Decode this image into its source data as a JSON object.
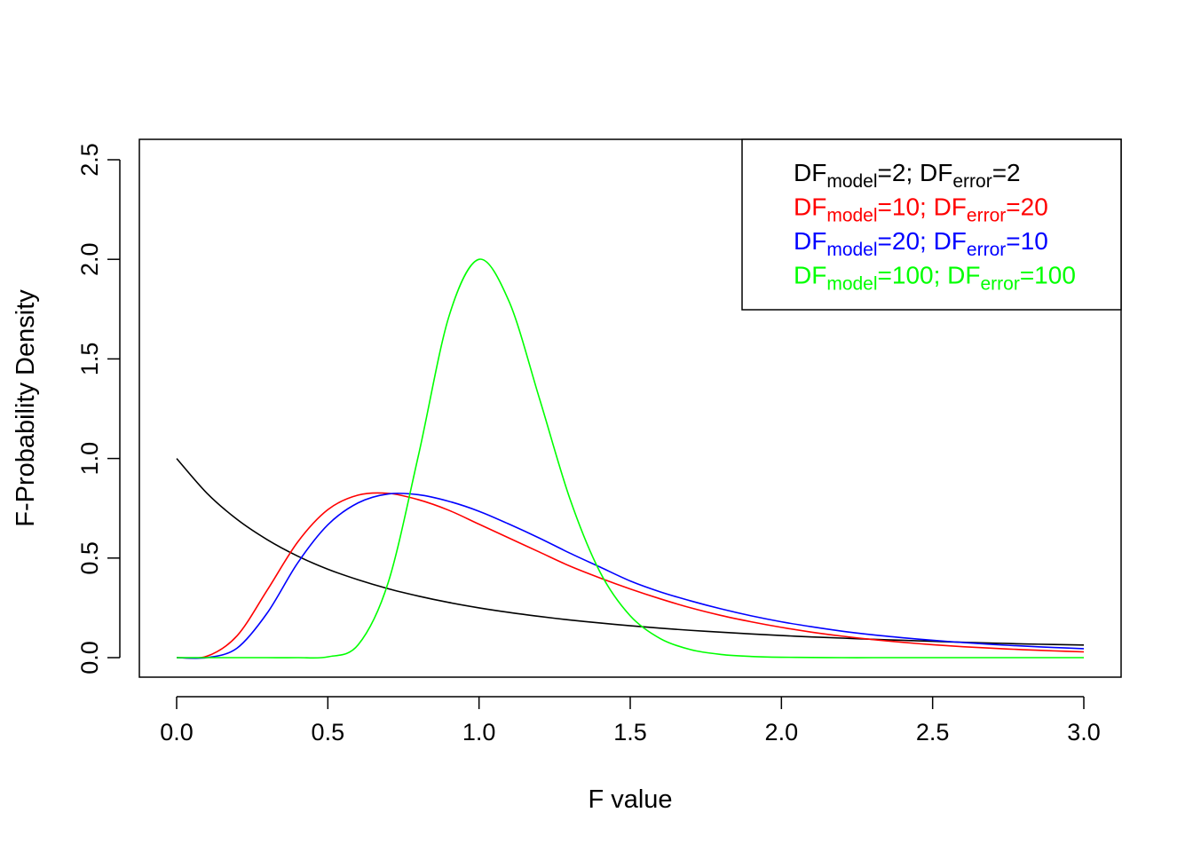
{
  "chart_data": {
    "type": "line",
    "title": "",
    "xlabel": "F value",
    "ylabel": "F-Probability Density",
    "xlim": [
      0,
      3
    ],
    "ylim": [
      0,
      2.5
    ],
    "x_ticks": [
      0.0,
      0.5,
      1.0,
      1.5,
      2.0,
      2.5,
      3.0
    ],
    "x_tick_labels": [
      "0.0",
      "0.5",
      "1.0",
      "1.5",
      "2.0",
      "2.5",
      "3.0"
    ],
    "y_ticks": [
      0.0,
      0.5,
      1.0,
      1.5,
      2.0,
      2.5
    ],
    "y_tick_labels": [
      "0.0",
      "0.5",
      "1.0",
      "1.5",
      "2.0",
      "2.5"
    ],
    "grid": false,
    "legend_position": "top-right",
    "x": [
      0.0,
      0.1,
      0.2,
      0.3,
      0.4,
      0.5,
      0.6,
      0.7,
      0.8,
      0.9,
      1.0,
      1.1,
      1.2,
      1.3,
      1.4,
      1.5,
      1.6,
      1.7,
      1.8,
      1.9,
      2.0,
      2.1,
      2.2,
      2.3,
      2.4,
      2.5,
      2.6,
      2.7,
      2.8,
      2.9,
      3.0
    ],
    "series": [
      {
        "name": "DFmodel=2; DFerror=2",
        "color": "#000000",
        "df_model": "2",
        "df_error": "2",
        "values": [
          1.0,
          0.826,
          0.694,
          0.592,
          0.51,
          0.444,
          0.391,
          0.346,
          0.309,
          0.277,
          0.25,
          0.227,
          0.207,
          0.189,
          0.174,
          0.16,
          0.148,
          0.137,
          0.128,
          0.119,
          0.111,
          0.104,
          0.098,
          0.092,
          0.087,
          0.082,
          0.077,
          0.073,
          0.069,
          0.066,
          0.063
        ]
      },
      {
        "name": "DFmodel=10; DFerror=20",
        "color": "#ff0000",
        "df_model": "10",
        "df_error": "20",
        "values": [
          0.0,
          0.007,
          0.11,
          0.34,
          0.58,
          0.743,
          0.816,
          0.825,
          0.793,
          0.74,
          0.67,
          0.6,
          0.53,
          0.46,
          0.4,
          0.345,
          0.295,
          0.25,
          0.212,
          0.18,
          0.152,
          0.128,
          0.108,
          0.091,
          0.077,
          0.065,
          0.055,
          0.047,
          0.04,
          0.034,
          0.029
        ]
      },
      {
        "name": "DFmodel=20; DFerror=10",
        "color": "#0000ff",
        "df_model": "20",
        "df_error": "10",
        "values": [
          0.0,
          0.0,
          0.048,
          0.225,
          0.475,
          0.667,
          0.777,
          0.822,
          0.818,
          0.785,
          0.735,
          0.67,
          0.6,
          0.525,
          0.455,
          0.385,
          0.33,
          0.285,
          0.245,
          0.21,
          0.18,
          0.155,
          0.133,
          0.115,
          0.1,
          0.087,
          0.076,
          0.066,
          0.058,
          0.051,
          0.045
        ]
      },
      {
        "name": "DFmodel=100; DFerror=100",
        "color": "#00ff00",
        "df_model": "100",
        "df_error": "100",
        "values": [
          0.0,
          0.0,
          0.0,
          0.0,
          0.0,
          0.004,
          0.064,
          0.379,
          1.018,
          1.711,
          2.0,
          1.786,
          1.3,
          0.8,
          0.43,
          0.21,
          0.095,
          0.04,
          0.016,
          0.006,
          0.002,
          0.001,
          0.0,
          0.0,
          0.0,
          0.0,
          0.0,
          0.0,
          0.0,
          0.0,
          0.0
        ]
      }
    ],
    "legend_label_parts": {
      "df": "DF",
      "model_sub": "model",
      "error_sub": "error",
      "eq": "=",
      "sep": "; "
    }
  }
}
